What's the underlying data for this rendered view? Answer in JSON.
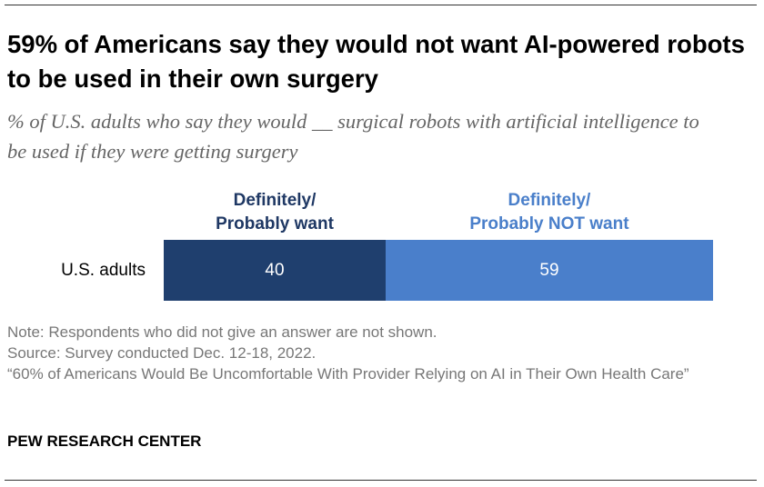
{
  "chart_data": {
    "type": "bar",
    "stacked": true,
    "orientation": "horizontal",
    "title": "59% of Americans say they would not want AI-powered robots to be used in their own surgery",
    "subtitle": "% of U.S. adults who say they would __ surgical robots with artificial intelligence to be used if they were getting surgery",
    "categories": [
      "U.S. adults"
    ],
    "series": [
      {
        "name": "Definitely/\nProbably want",
        "color": "#1f3f6e",
        "label_color": "#1f3864",
        "values": [
          40
        ]
      },
      {
        "name": "Definitely/\nProbably NOT want",
        "color": "#4a7fcb",
        "label_color": "#4a7fca",
        "values": [
          59
        ]
      }
    ],
    "notes": [
      "Note: Respondents who did not give an answer are not shown.",
      "Source: Survey conducted Dec. 12-18, 2022.",
      "“60% of Americans Would Be Uncomfortable With Provider Relying on AI in Their Own Health Care”"
    ],
    "footer": "PEW RESEARCH CENTER"
  }
}
